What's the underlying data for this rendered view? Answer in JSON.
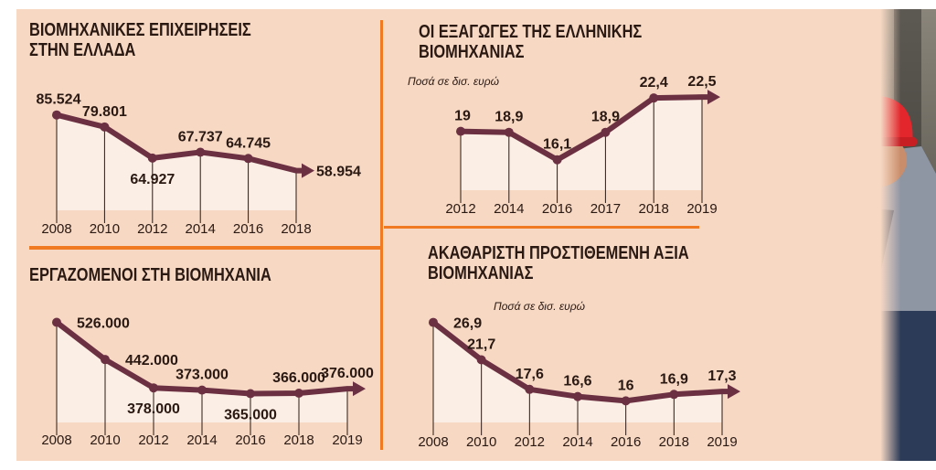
{
  "colors": {
    "line": "#6b3042",
    "background": "#f6d8c3",
    "divider": "#f07a22",
    "text": "#2a1812"
  },
  "chart_data": [
    {
      "type": "area",
      "title": "ΒΙΟΜΗΧΑΝΙΚΕΣ ΕΠΙΧΕΙΡΗΣΕΙΣ ΣΤΗΝ ΕΛΛΑΔΑ",
      "subtitle": "",
      "categories": [
        "2008",
        "2010",
        "2012",
        "2014",
        "2016",
        "2018"
      ],
      "values": [
        85524,
        79801,
        64927,
        67737,
        64745,
        58954
      ],
      "labels": [
        "85.524",
        "79.801",
        "64.927",
        "67.737",
        "64.745",
        "58.954"
      ],
      "ylim": [
        40000,
        95000
      ],
      "grid": false,
      "legend": "none"
    },
    {
      "type": "area",
      "title": "ΟΙ ΕΞΑΓΩΓΕΣ ΤΗΣ ΕΛΛΗΝΙΚΗΣ ΒΙΟΜΗΧΑΝΙΑΣ",
      "subtitle": "Ποσά σε δισ. ευρώ",
      "categories": [
        "2012",
        "2014",
        "2016",
        "2017",
        "2018",
        "2019"
      ],
      "values": [
        19,
        18.9,
        16.1,
        18.9,
        22.4,
        22.5
      ],
      "labels": [
        "19",
        "18,9",
        "16,1",
        "18,9",
        "22,4",
        "22,5"
      ],
      "ylim": [
        13,
        24
      ],
      "grid": false,
      "legend": "none"
    },
    {
      "type": "area",
      "title": "ΕΡΓΑΖΟΜΕΝΟΙ ΣΤΗ ΒΙΟΜΗΧΑΝΙΑ",
      "subtitle": "",
      "categories": [
        "2008",
        "2010",
        "2012",
        "2014",
        "2016",
        "2018",
        "2019"
      ],
      "values": [
        526000,
        442000,
        378000,
        373000,
        365000,
        366000,
        376000
      ],
      "labels": [
        "526.000",
        "442.000",
        "378.000",
        "373.000",
        "365.000",
        "366.000",
        "376.000"
      ],
      "ylim": [
        300000,
        560000
      ],
      "grid": false,
      "legend": "none"
    },
    {
      "type": "area",
      "title": "ΑΚΑΘΑΡΙΣΤΗ ΠΡΟΣΤΙΘΕΜΕΝΗ ΑΞΙΑ ΒΙΟΜΗΧΑΝΙΑΣ",
      "subtitle": "Ποσά σε δισ. ευρώ",
      "categories": [
        "2008",
        "2010",
        "2012",
        "2014",
        "2016",
        "2018",
        "2019"
      ],
      "values": [
        26.9,
        21.7,
        17.6,
        16.6,
        16,
        16.9,
        17.3
      ],
      "labels": [
        "26,9",
        "21,7",
        "17,6",
        "16,6",
        "16",
        "16,9",
        "17,3"
      ],
      "ylim": [
        13,
        28.5
      ],
      "grid": false,
      "legend": "none"
    }
  ]
}
